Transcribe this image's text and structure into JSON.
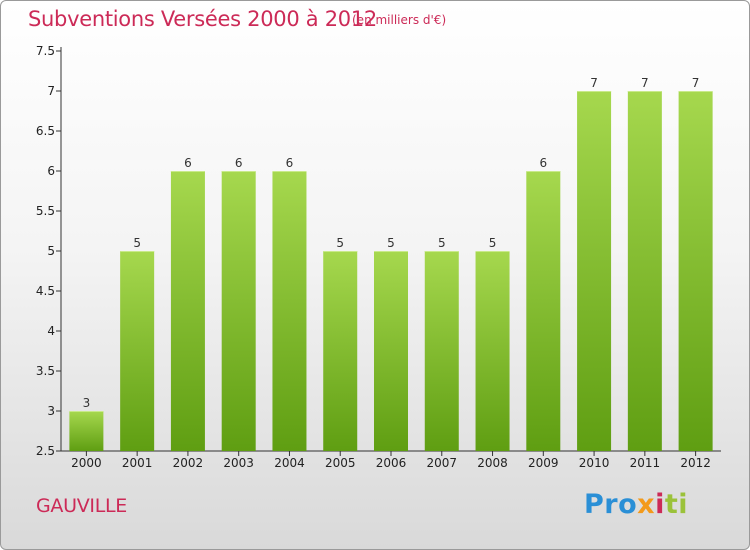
{
  "header": {
    "title": "Subventions Versées 2000 à 2012",
    "unit": "(en milliers d'€)"
  },
  "footer": {
    "place": "GAUVILLE",
    "logo": "Proxiti"
  },
  "colors": {
    "accent": "#cc2a57",
    "bar_light": "#a6d84e",
    "bar_dark": "#5f9e12",
    "logo_blue": "#2a8fd6",
    "logo_orange": "#f39a1a",
    "logo_green": "#9bc23a"
  },
  "chart_data": {
    "type": "bar",
    "title": "Subventions Versées 2000 à 2012",
    "subtitle": "(en milliers d'€)",
    "categories": [
      "2000",
      "2001",
      "2002",
      "2003",
      "2004",
      "2005",
      "2006",
      "2007",
      "2008",
      "2009",
      "2010",
      "2011",
      "2012"
    ],
    "values": [
      3,
      5,
      6,
      6,
      6,
      5,
      5,
      5,
      5,
      6,
      7,
      7,
      7
    ],
    "data_labels": [
      "3",
      "5",
      "6",
      "6",
      "6",
      "5",
      "5",
      "5",
      "5",
      "6",
      "7",
      "7",
      "7"
    ],
    "ylim": [
      2.5,
      7.5
    ],
    "yticks": [
      2.5,
      3,
      3.5,
      4,
      4.5,
      5,
      5.5,
      6,
      6.5,
      7,
      7.5
    ],
    "ytick_labels": [
      "2.5",
      "3",
      "3.5",
      "4",
      "4.5",
      "5",
      "5.5",
      "6",
      "6.5",
      "7",
      "7.5"
    ],
    "xlabel": "",
    "ylabel": "",
    "grid": false,
    "legend": "none"
  }
}
